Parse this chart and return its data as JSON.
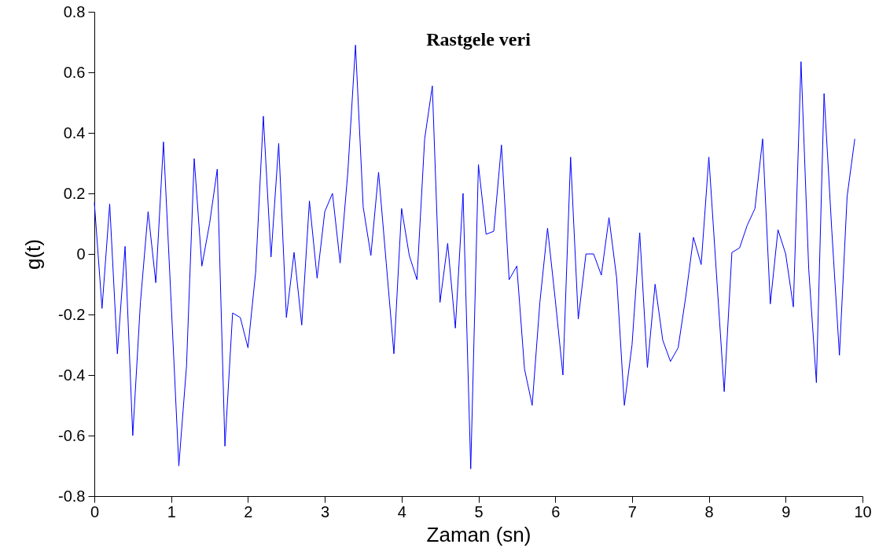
{
  "chart_data": {
    "type": "line",
    "title": "Rastgele veri",
    "xlabel": "Zaman (sn)",
    "ylabel": "g(t)",
    "x": [
      0,
      0.1,
      0.2,
      0.3,
      0.4,
      0.5,
      0.6,
      0.7,
      0.8,
      0.9,
      1,
      1.1,
      1.2,
      1.3,
      1.4,
      1.5,
      1.6,
      1.7,
      1.8,
      1.9,
      2,
      2.1,
      2.2,
      2.3,
      2.4,
      2.5,
      2.6,
      2.7,
      2.8,
      2.9,
      3,
      3.1,
      3.2,
      3.3,
      3.4,
      3.5,
      3.6,
      3.7,
      3.8,
      3.9,
      4,
      4.1,
      4.2,
      4.3,
      4.4,
      4.5,
      4.6,
      4.7,
      4.8,
      4.9,
      5,
      5.1,
      5.2,
      5.3,
      5.4,
      5.5,
      5.6,
      5.7,
      5.8,
      5.9,
      6,
      6.1,
      6.2,
      6.3,
      6.4,
      6.5,
      6.6,
      6.7,
      6.8,
      6.9,
      7,
      7.1,
      7.2,
      7.3,
      7.4,
      7.5,
      7.6,
      7.7,
      7.8,
      7.9,
      8,
      8.1,
      8.2,
      8.3,
      8.4,
      8.5,
      8.6,
      8.7,
      8.8,
      8.9,
      9,
      9.1,
      9.2,
      9.3,
      9.4,
      9.5,
      9.6,
      9.7,
      9.8,
      9.9
    ],
    "series": [
      {
        "color": "#0000ff",
        "values": [
          0.17,
          -0.18,
          0.165,
          -0.33,
          0.025,
          -0.6,
          -0.16,
          0.14,
          -0.095,
          0.37,
          -0.16,
          -0.7,
          -0.37,
          0.315,
          -0.04,
          0.1,
          0.28,
          -0.635,
          -0.195,
          -0.21,
          -0.31,
          -0.06,
          0.455,
          -0.01,
          0.365,
          -0.21,
          0.005,
          -0.235,
          0.175,
          -0.08,
          0.14,
          0.2,
          -0.03,
          0.27,
          0.69,
          0.155,
          -0.005,
          0.27,
          -0.03,
          -0.33,
          0.15,
          -0.005,
          -0.085,
          0.38,
          0.555,
          -0.16,
          0.035,
          -0.245,
          0.2,
          -0.71,
          0.295,
          0.065,
          0.075,
          0.36,
          -0.085,
          -0.04,
          -0.38,
          -0.5,
          -0.16,
          0.085,
          -0.15,
          -0.4,
          0.32,
          -0.215,
          0,
          0,
          -0.07,
          0.12,
          -0.08,
          -0.5,
          -0.3,
          0.07,
          -0.375,
          -0.1,
          -0.285,
          -0.355,
          -0.31,
          -0.14,
          0.055,
          -0.035,
          0.32,
          -0.07,
          -0.455,
          0.005,
          0.02,
          0.095,
          0.15,
          0.38,
          -0.165,
          0.08,
          0,
          -0.175,
          0.635,
          -0.05,
          -0.425,
          0.53,
          0.08,
          -0.335,
          0.19,
          0.38
        ]
      }
    ],
    "xlim": [
      0,
      10
    ],
    "xticks": [
      0,
      1,
      2,
      3,
      4,
      5,
      6,
      7,
      8,
      9,
      10
    ],
    "ylim": [
      -0.8,
      0.8
    ],
    "yticks": [
      -0.8,
      -0.6,
      -0.4,
      -0.2,
      0,
      0.2,
      0.4,
      0.6,
      0.8
    ],
    "grid": false,
    "marker": "none",
    "line_style": "solid"
  }
}
